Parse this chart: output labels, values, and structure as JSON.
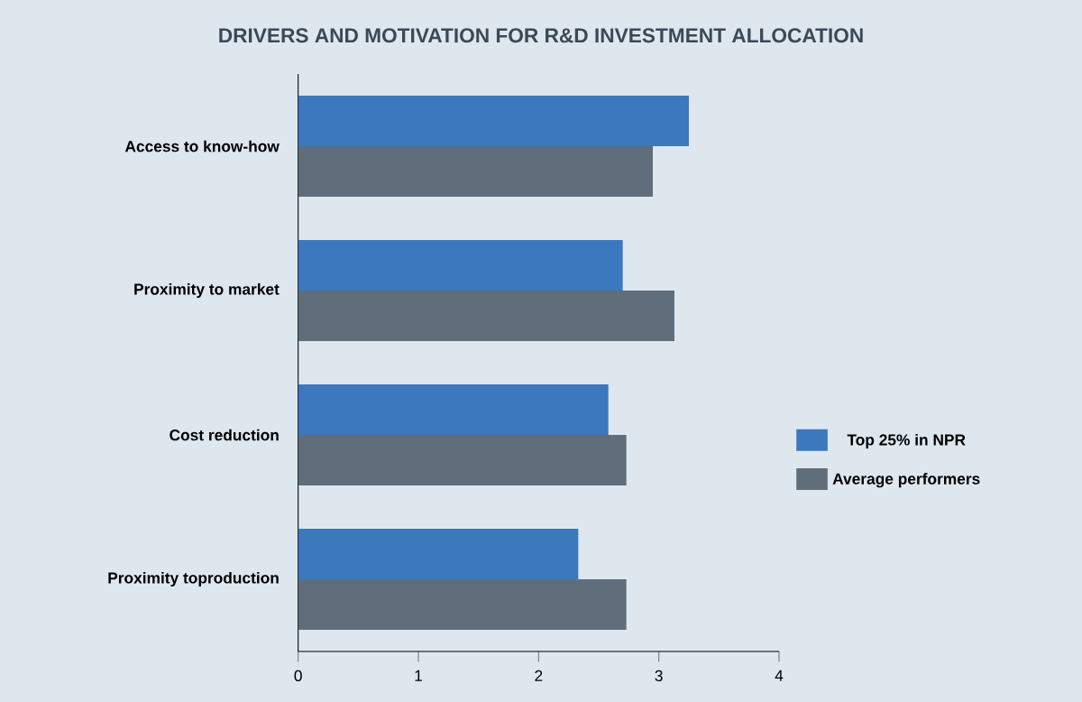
{
  "chart_data": {
    "type": "bar",
    "orientation": "horizontal",
    "title": "DRIVERS AND MOTIVATION FOR R&D INVESTMENT ALLOCATION",
    "categories": [
      "Access to know-how",
      "Proximity to market",
      "Cost reduction",
      "Proximity toproduction"
    ],
    "series": [
      {
        "name": "Top 25% in NPR",
        "color": "#3b78bd",
        "values": [
          3.25,
          2.7,
          2.58,
          2.33
        ]
      },
      {
        "name": "Average performers",
        "color": "#5f6e7a",
        "values": [
          2.95,
          3.13,
          2.73,
          2.73
        ]
      }
    ],
    "xlim": [
      0,
      4
    ],
    "xticks": [
      0,
      1,
      2,
      3,
      4
    ],
    "legend": "right",
    "grid": false
  }
}
